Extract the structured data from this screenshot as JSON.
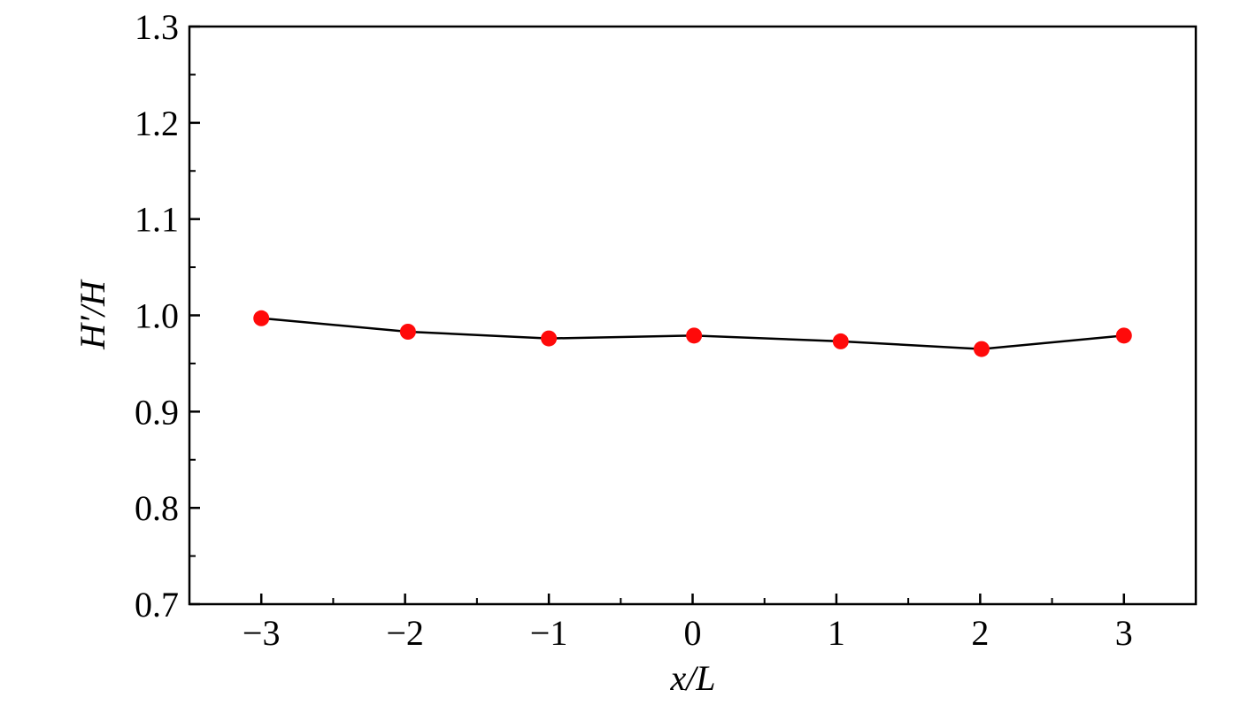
{
  "chart_data": {
    "type": "line",
    "x_label": "x/L",
    "y_label": "H′/H",
    "x": [
      -3,
      -1.98,
      -1,
      0.01,
      1.03,
      2.01,
      3
    ],
    "series": [
      {
        "name": "H′/H",
        "color": "#ff0a0a",
        "line_color": "#000000",
        "values": [
          0.997,
          0.983,
          0.976,
          0.979,
          0.973,
          0.965,
          0.979
        ]
      }
    ],
    "xlim": [
      -3.5,
      3.5
    ],
    "xticks": [
      {
        "value": -3,
        "label": "−3"
      },
      {
        "value": -2,
        "label": "−2"
      },
      {
        "value": -1,
        "label": "−1"
      },
      0,
      1,
      2,
      3
    ],
    "xminorticks": [
      -2.5,
      -1.5,
      -0.5,
      0.5,
      1.5,
      2.5
    ],
    "ylim": [
      0.7,
      1.3
    ],
    "yticks": [
      0.7,
      0.8,
      0.9,
      {
        "value": 1,
        "label": "1.0"
      },
      1.1,
      1.2,
      1.3
    ],
    "yminorticks": [
      0.75,
      0.85,
      0.95,
      1.05,
      1.15,
      1.25
    ],
    "grid": false
  }
}
